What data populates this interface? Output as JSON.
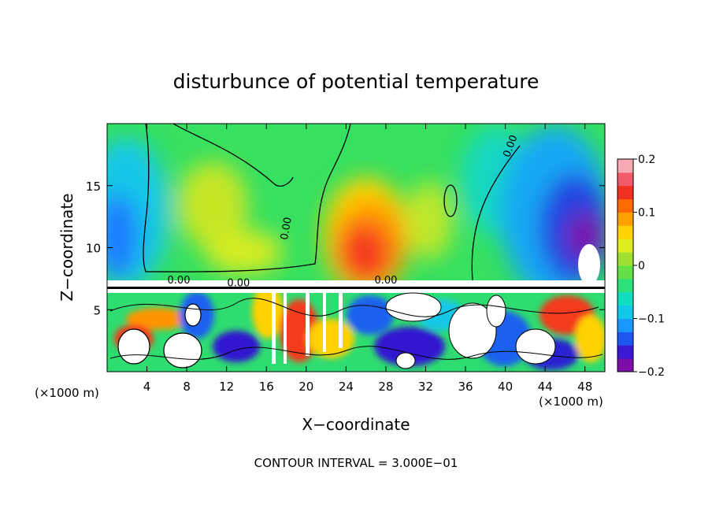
{
  "chart_data": {
    "type": "heatmap",
    "title": "disturbunce of potential temperature",
    "xlabel": "X−coordinate",
    "ylabel": "Z−coordinate",
    "x_unit_left": "(×1000 m)",
    "x_unit_right": "(×1000 m)",
    "xlim": [
      0,
      50
    ],
    "ylim": [
      0,
      20
    ],
    "x_ticks": [
      4,
      8,
      12,
      16,
      20,
      24,
      28,
      32,
      36,
      40,
      44,
      48
    ],
    "x_tick_labels": [
      "4",
      "8",
      "12",
      "16",
      "20",
      "24",
      "28",
      "32",
      "36",
      "40",
      "44",
      "48"
    ],
    "y_ticks": [
      5,
      10,
      15
    ],
    "y_tick_labels": [
      "5",
      "10",
      "15"
    ],
    "colorbar": {
      "range": [
        -0.2,
        0.2
      ],
      "ticks": [
        0.2,
        0.1,
        0,
        -0.1,
        -0.2
      ],
      "tick_labels": [
        "0.2",
        "0.1",
        "0",
        "−0.1",
        "−0.2"
      ],
      "colors": [
        "#7d0fa8",
        "#3a18d4",
        "#1f56f0",
        "#1a96ff",
        "#10c8e8",
        "#10dcc0",
        "#2ee07a",
        "#62e046",
        "#a0e030",
        "#dcec1e",
        "#ffd200",
        "#ffa000",
        "#ff6a00",
        "#f03020",
        "#f05a6a",
        "#f8aab4"
      ]
    },
    "contour_label": "0.00",
    "contour_labels": [
      {
        "text": "0.00",
        "x": 18.3,
        "y": 11.5,
        "rotate": -80
      },
      {
        "text": "0.00",
        "x": 40.8,
        "y": 18.1,
        "rotate": -70
      },
      {
        "text": "0.00",
        "x": 7.2,
        "y": 7.1,
        "rotate": 0
      },
      {
        "text": "0.00",
        "x": 13.2,
        "y": 6.9,
        "rotate": 0
      },
      {
        "text": "0.00",
        "x": 28.0,
        "y": 7.1,
        "rotate": 0
      }
    ],
    "footer": "CONTOUR INTERVAL = 3.000E−01"
  }
}
